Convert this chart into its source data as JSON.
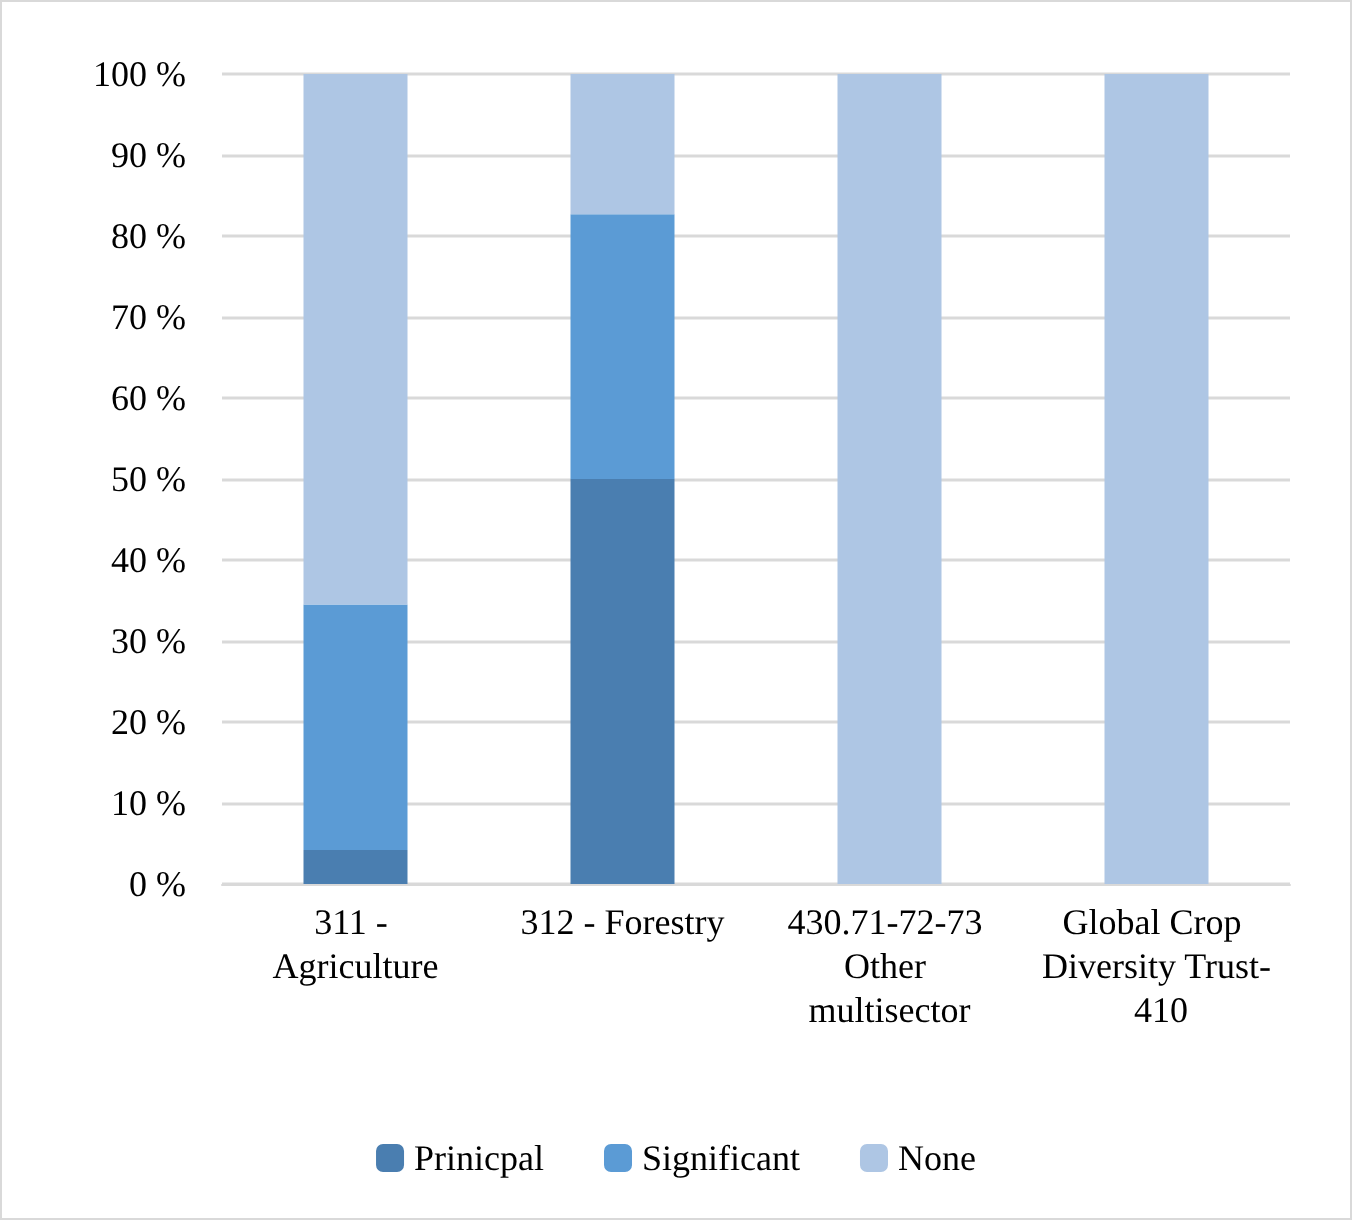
{
  "chart_data": {
    "type": "bar",
    "stacked": true,
    "categories": [
      "311 - Agriculture",
      "312 - Forestry",
      "430.71-72-73 Other multisector",
      "Global Crop Diversity Trust- 410"
    ],
    "series": [
      {
        "name": "Prinicpal",
        "color": "#4a7eb0",
        "values": [
          4.2,
          50,
          0,
          0
        ]
      },
      {
        "name": "Significant",
        "color": "#5b9bd5",
        "values": [
          30.3,
          32.7,
          0,
          0
        ]
      },
      {
        "name": "None",
        "color": "#aec6e4",
        "values": [
          65.5,
          17.3,
          100,
          100
        ]
      }
    ],
    "ylim": [
      0,
      100
    ],
    "yticks": [
      {
        "value": 0,
        "label": "0 %"
      },
      {
        "value": 10,
        "label": "10 %"
      },
      {
        "value": 20,
        "label": "20 %"
      },
      {
        "value": 30,
        "label": "30 %"
      },
      {
        "value": 40,
        "label": "40 %"
      },
      {
        "value": 50,
        "label": "50 %"
      },
      {
        "value": 60,
        "label": "60 %"
      },
      {
        "value": 70,
        "label": "70 %"
      },
      {
        "value": 80,
        "label": "80 %"
      },
      {
        "value": 90,
        "label": "90 %"
      },
      {
        "value": 100,
        "label": "100 %"
      }
    ],
    "grid": "y",
    "legend": "bottom"
  }
}
